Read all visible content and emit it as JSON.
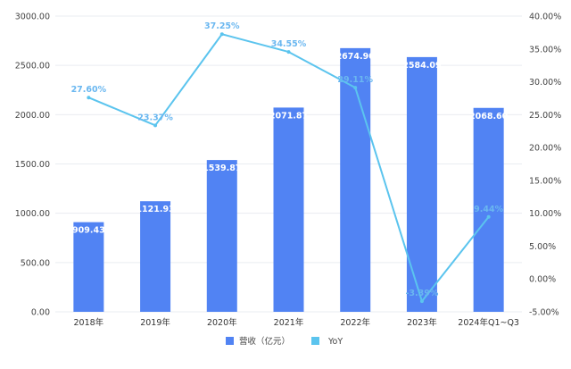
{
  "chart_data": {
    "type": "bar",
    "categories": [
      "2018年",
      "2019年",
      "2020年",
      "2021年",
      "2022年",
      "2023年",
      "2024年Q1~Q3"
    ],
    "series": [
      {
        "name": "营收（亿元）",
        "type": "bar",
        "axis": "left",
        "values": [
          909.43,
          1121.93,
          1539.87,
          2071.87,
          2674.9,
          2584.09,
          2068.6
        ],
        "labels": [
          "909.43",
          "1121.93",
          "1539.87",
          "2071.87",
          "2674.90",
          "2584.09",
          "2068.60"
        ]
      },
      {
        "name": "YoY",
        "type": "line",
        "axis": "right",
        "values": [
          27.6,
          23.37,
          37.25,
          34.55,
          29.11,
          -3.39,
          9.44
        ],
        "labels": [
          "27.60%",
          "23.37%",
          "37.25%",
          "34.55%",
          "29.11%",
          "-3.39%",
          "9.44%"
        ]
      }
    ],
    "y_left": {
      "range": [
        0,
        3000
      ],
      "ticks": [
        "0.00",
        "500.00",
        "1000.00",
        "1500.00",
        "2000.00",
        "2500.00",
        "3000.00"
      ]
    },
    "y_right": {
      "range": [
        -5,
        40
      ],
      "ticks": [
        "-5.00%",
        "0.00%",
        "5.00%",
        "10.00%",
        "15.00%",
        "20.00%",
        "25.00%",
        "30.00%",
        "35.00%",
        "40.00%"
      ]
    },
    "grid": true,
    "legend": "bottom-center",
    "colors": {
      "bar": "#5183f3",
      "line": "#5bc4ee",
      "line_label": "#6ab7f0"
    }
  }
}
